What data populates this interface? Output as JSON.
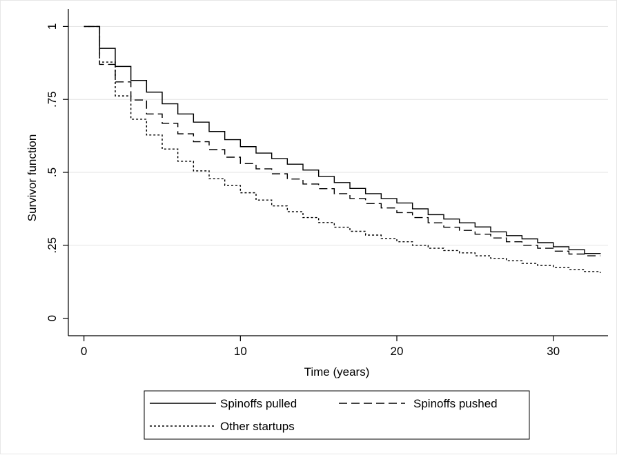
{
  "chart_data": {
    "type": "line",
    "title": "",
    "xlabel": "Time (years)",
    "ylabel": "Survivor function",
    "xlim": [
      -1,
      33.5
    ],
    "ylim": [
      -0.06,
      1.06
    ],
    "x_ticks": [
      0,
      10,
      20,
      30
    ],
    "x_tick_labels": [
      "0",
      "10",
      "20",
      "30"
    ],
    "y_ticks": [
      0,
      0.25,
      0.5,
      0.75,
      1
    ],
    "y_tick_labels": [
      "0",
      ".25",
      ".5",
      ".75",
      "1"
    ],
    "grid": true,
    "legend_position": "bottom",
    "series": [
      {
        "name": "Spinoffs pulled",
        "style": "solid",
        "x": [
          0,
          1,
          2,
          3,
          4,
          5,
          6,
          7,
          8,
          9,
          10,
          11,
          12,
          13,
          14,
          15,
          16,
          17,
          18,
          19,
          20,
          21,
          22,
          23,
          24,
          25,
          26,
          27,
          28,
          29,
          30,
          31,
          32,
          33
        ],
        "y": [
          1.0,
          0.925,
          0.863,
          0.815,
          0.775,
          0.735,
          0.7,
          0.672,
          0.64,
          0.612,
          0.588,
          0.566,
          0.547,
          0.528,
          0.508,
          0.486,
          0.465,
          0.445,
          0.427,
          0.41,
          0.395,
          0.375,
          0.355,
          0.34,
          0.327,
          0.313,
          0.296,
          0.283,
          0.272,
          0.259,
          0.245,
          0.235,
          0.222,
          0.22
        ]
      },
      {
        "name": "Spinoffs pushed",
        "style": "dashed",
        "x": [
          0,
          1,
          2,
          3,
          4,
          5,
          6,
          7,
          8,
          9,
          10,
          11,
          12,
          13,
          14,
          15,
          16,
          17,
          18,
          19,
          20,
          21,
          22,
          23,
          24,
          25,
          26,
          27,
          28,
          29,
          30,
          31,
          32,
          33
        ],
        "y": [
          1.0,
          0.87,
          0.81,
          0.748,
          0.7,
          0.668,
          0.632,
          0.605,
          0.578,
          0.552,
          0.53,
          0.512,
          0.495,
          0.477,
          0.46,
          0.444,
          0.427,
          0.41,
          0.393,
          0.378,
          0.362,
          0.345,
          0.327,
          0.312,
          0.301,
          0.288,
          0.275,
          0.262,
          0.25,
          0.24,
          0.23,
          0.22,
          0.214,
          0.214
        ]
      },
      {
        "name": "Other startups",
        "style": "dotted",
        "x": [
          0,
          1,
          2,
          3,
          4,
          5,
          6,
          7,
          8,
          9,
          10,
          11,
          12,
          13,
          14,
          15,
          16,
          17,
          18,
          19,
          20,
          21,
          22,
          23,
          24,
          25,
          26,
          27,
          28,
          29,
          30,
          31,
          32,
          33
        ],
        "y": [
          1.0,
          0.878,
          0.762,
          0.682,
          0.628,
          0.58,
          0.538,
          0.505,
          0.478,
          0.455,
          0.43,
          0.405,
          0.385,
          0.365,
          0.345,
          0.328,
          0.312,
          0.298,
          0.285,
          0.273,
          0.262,
          0.25,
          0.24,
          0.232,
          0.224,
          0.214,
          0.205,
          0.197,
          0.188,
          0.181,
          0.174,
          0.167,
          0.16,
          0.155
        ]
      }
    ],
    "legend": {
      "rows": [
        [
          "Spinoffs pulled",
          "Spinoffs pushed"
        ],
        [
          "Other startups"
        ]
      ]
    }
  }
}
